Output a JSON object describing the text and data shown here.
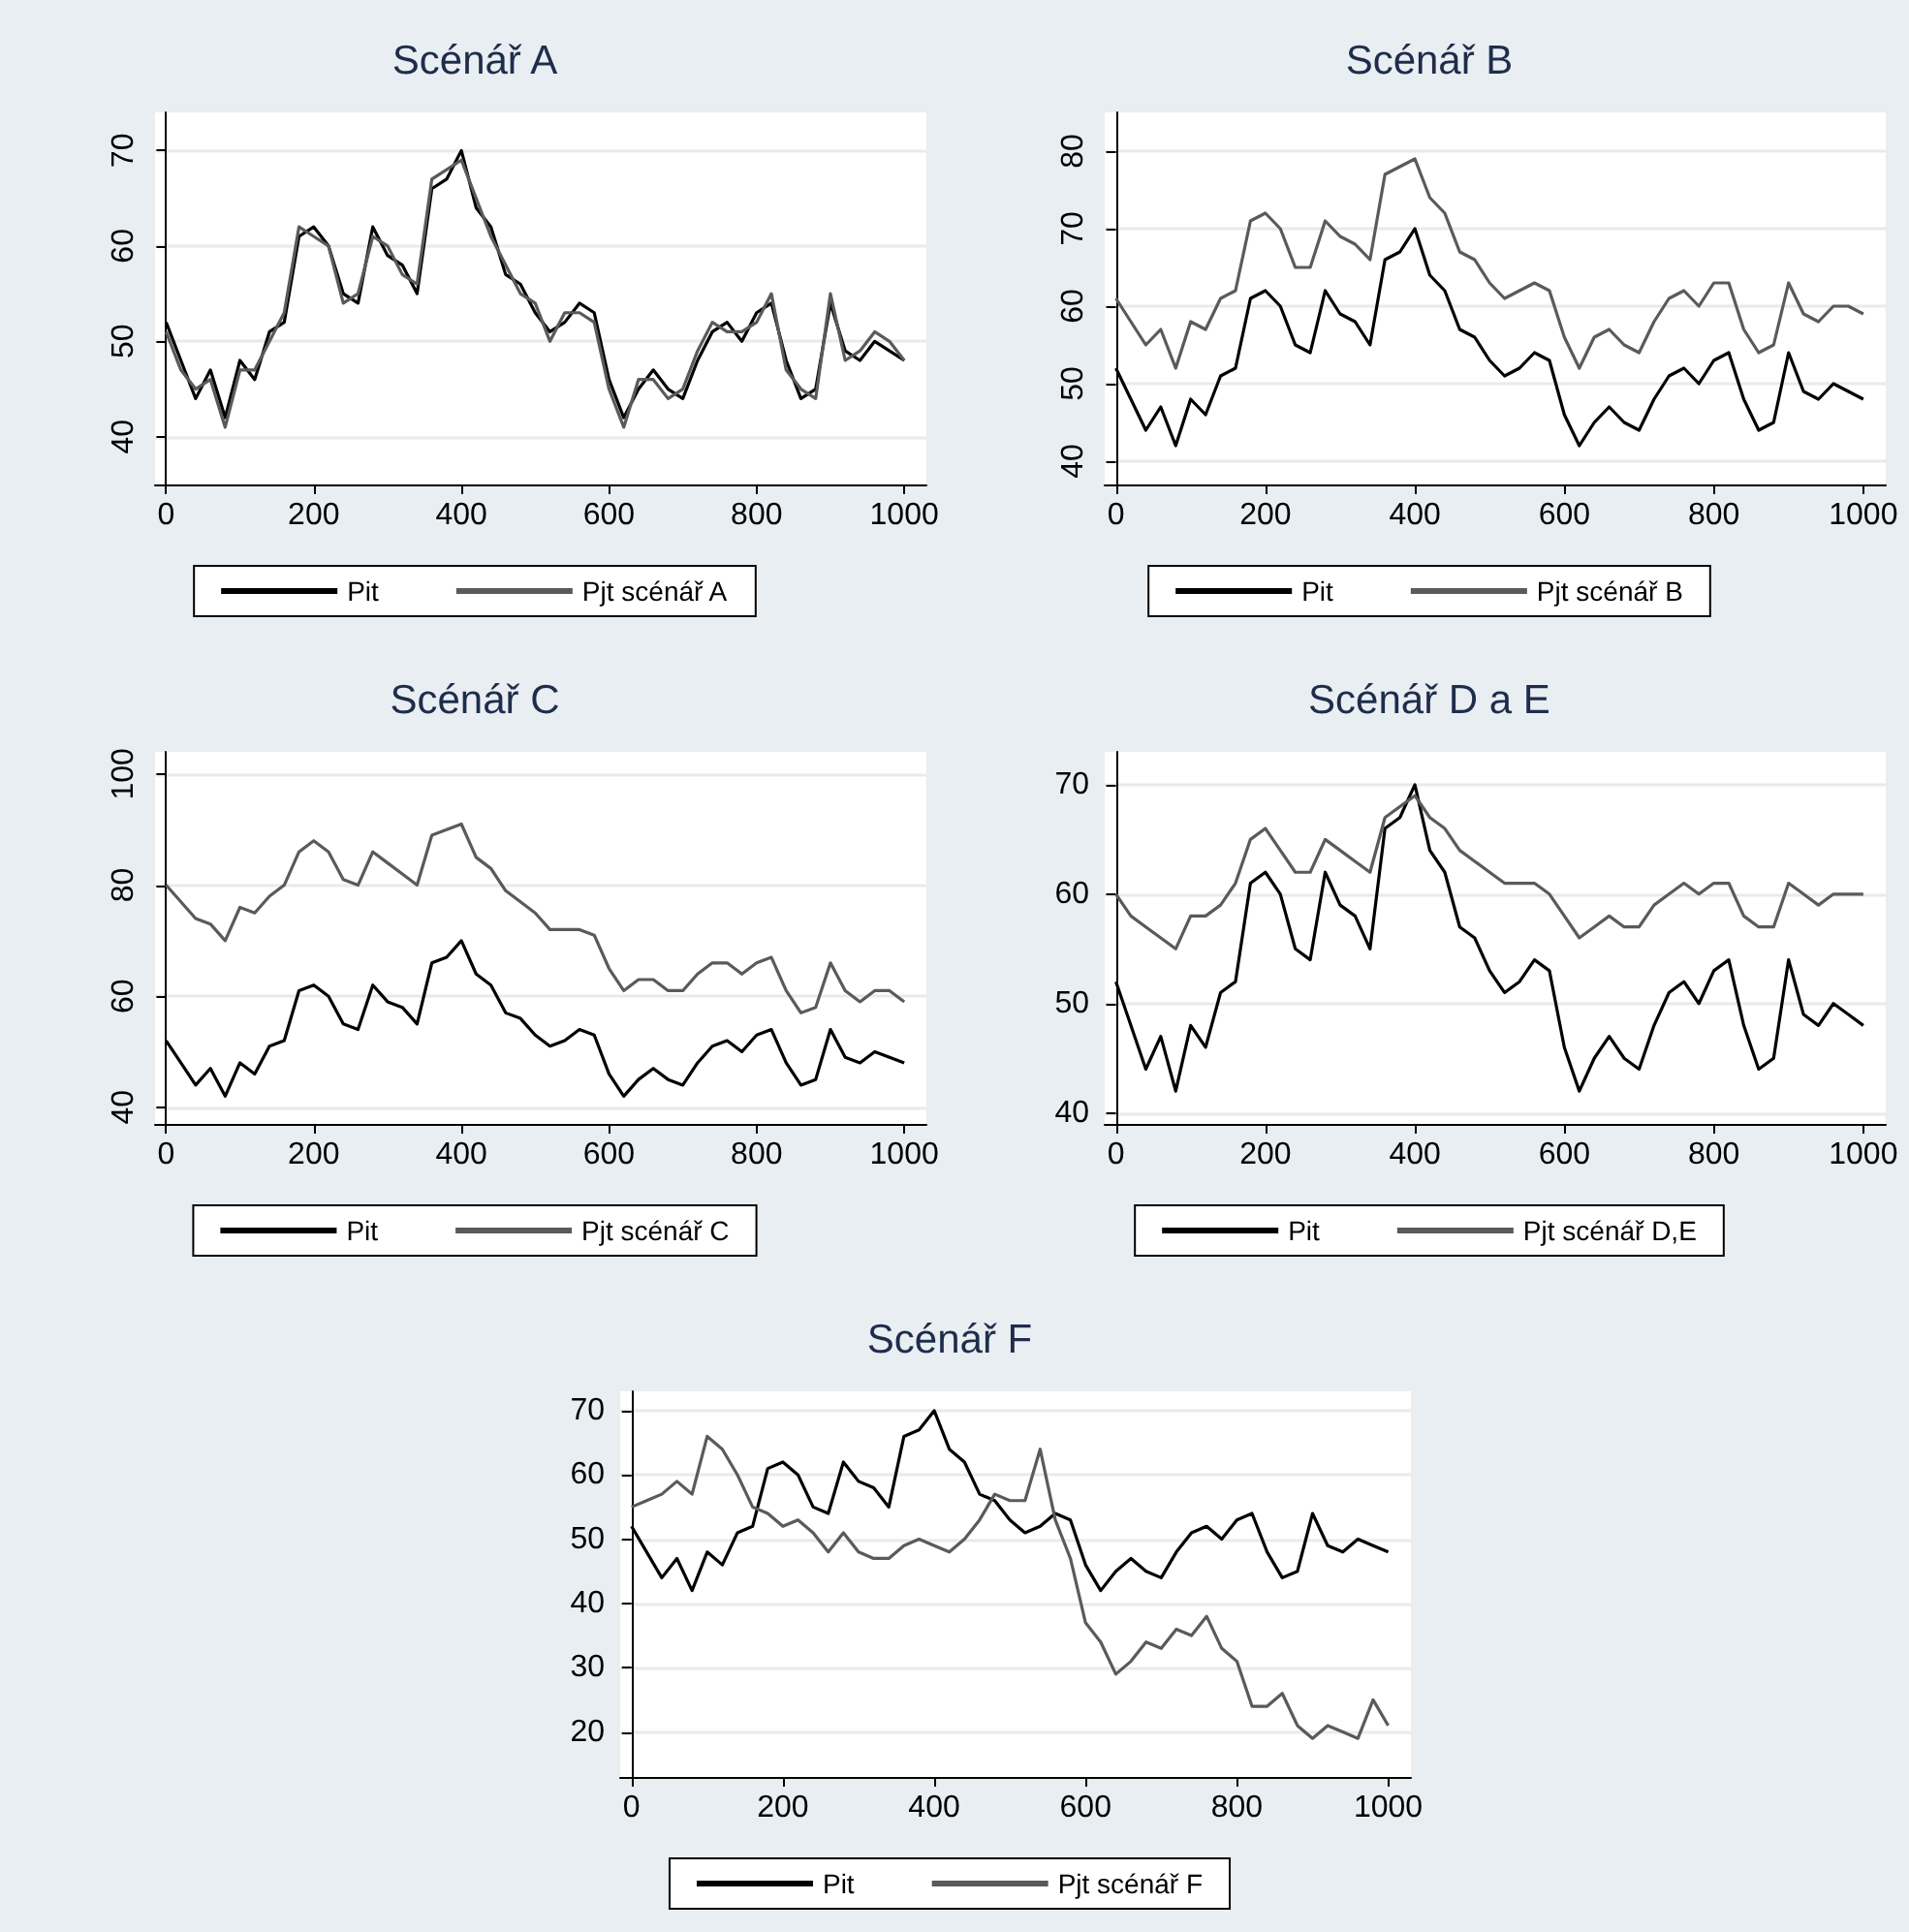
{
  "chart_data": [
    {
      "type": "line",
      "title": "Scénář A",
      "x": [
        0,
        20,
        40,
        60,
        80,
        100,
        120,
        140,
        160,
        180,
        200,
        220,
        240,
        260,
        280,
        300,
        320,
        340,
        360,
        380,
        400,
        420,
        440,
        460,
        480,
        500,
        520,
        540,
        560,
        580,
        600,
        620,
        640,
        660,
        680,
        700,
        720,
        740,
        760,
        780,
        800,
        820,
        840,
        860,
        880,
        900,
        920,
        940,
        960,
        980,
        1000
      ],
      "xlim": [
        -15,
        1030
      ],
      "xticks": [
        0,
        200,
        400,
        600,
        800,
        1000
      ],
      "ylim": [
        35,
        74
      ],
      "yticks": [
        40,
        50,
        60,
        70
      ],
      "grid": "y",
      "legend": "bottom",
      "marker": "none",
      "line_style": "solid",
      "series": [
        {
          "name": "Pit",
          "color": "#000000",
          "values": [
            52,
            48,
            44,
            47,
            42,
            48,
            46,
            51,
            52,
            61,
            62,
            60,
            55,
            54,
            62,
            59,
            58,
            55,
            66,
            67,
            70,
            64,
            62,
            57,
            56,
            53,
            51,
            52,
            54,
            53,
            46,
            42,
            45,
            47,
            45,
            44,
            48,
            51,
            52,
            50,
            53,
            54,
            48,
            44,
            45,
            54,
            49,
            48,
            50,
            49,
            48
          ]
        },
        {
          "name": "Pjt scénář A",
          "color": "#5a5a5a",
          "values": [
            51,
            47,
            45,
            46,
            41,
            47,
            47,
            50,
            53,
            62,
            61,
            60,
            54,
            55,
            61,
            60,
            57,
            56,
            67,
            68,
            69,
            65,
            61,
            58,
            55,
            54,
            50,
            53,
            53,
            52,
            45,
            41,
            46,
            46,
            44,
            45,
            49,
            52,
            51,
            51,
            52,
            55,
            47,
            45,
            44,
            55,
            48,
            49,
            51,
            50,
            48
          ]
        }
      ]
    },
    {
      "type": "line",
      "title": "Scénář B",
      "x": [
        0,
        20,
        40,
        60,
        80,
        100,
        120,
        140,
        160,
        180,
        200,
        220,
        240,
        260,
        280,
        300,
        320,
        340,
        360,
        380,
        400,
        420,
        440,
        460,
        480,
        500,
        520,
        540,
        560,
        580,
        600,
        620,
        640,
        660,
        680,
        700,
        720,
        740,
        760,
        780,
        800,
        820,
        840,
        860,
        880,
        900,
        920,
        940,
        960,
        980,
        1000
      ],
      "xlim": [
        -15,
        1030
      ],
      "xticks": [
        0,
        200,
        400,
        600,
        800,
        1000
      ],
      "ylim": [
        37,
        85
      ],
      "yticks": [
        40,
        50,
        60,
        70,
        80
      ],
      "grid": "y",
      "legend": "bottom",
      "marker": "none",
      "line_style": "solid",
      "series": [
        {
          "name": "Pit",
          "color": "#000000",
          "values": [
            52,
            48,
            44,
            47,
            42,
            48,
            46,
            51,
            52,
            61,
            62,
            60,
            55,
            54,
            62,
            59,
            58,
            55,
            66,
            67,
            70,
            64,
            62,
            57,
            56,
            53,
            51,
            52,
            54,
            53,
            46,
            42,
            45,
            47,
            45,
            44,
            48,
            51,
            52,
            50,
            53,
            54,
            48,
            44,
            45,
            54,
            49,
            48,
            50,
            49,
            48
          ]
        },
        {
          "name": "Pjt scénář B",
          "color": "#5a5a5a",
          "values": [
            61,
            58,
            55,
            57,
            52,
            58,
            57,
            61,
            62,
            71,
            72,
            70,
            65,
            65,
            71,
            69,
            68,
            66,
            77,
            78,
            79,
            74,
            72,
            67,
            66,
            63,
            61,
            62,
            63,
            62,
            56,
            52,
            56,
            57,
            55,
            54,
            58,
            61,
            62,
            60,
            63,
            63,
            57,
            54,
            55,
            63,
            59,
            58,
            60,
            60,
            59
          ]
        }
      ]
    },
    {
      "type": "line",
      "title": "Scénář C",
      "x": [
        0,
        20,
        40,
        60,
        80,
        100,
        120,
        140,
        160,
        180,
        200,
        220,
        240,
        260,
        280,
        300,
        320,
        340,
        360,
        380,
        400,
        420,
        440,
        460,
        480,
        500,
        520,
        540,
        560,
        580,
        600,
        620,
        640,
        660,
        680,
        700,
        720,
        740,
        760,
        780,
        800,
        820,
        840,
        860,
        880,
        900,
        920,
        940,
        960,
        980,
        1000
      ],
      "xlim": [
        -15,
        1030
      ],
      "xticks": [
        0,
        200,
        400,
        600,
        800,
        1000
      ],
      "ylim": [
        37,
        104
      ],
      "yticks": [
        40,
        60,
        80,
        100
      ],
      "grid": "y",
      "legend": "bottom",
      "marker": "none",
      "line_style": "solid",
      "series": [
        {
          "name": "Pit",
          "color": "#000000",
          "values": [
            52,
            48,
            44,
            47,
            42,
            48,
            46,
            51,
            52,
            61,
            62,
            60,
            55,
            54,
            62,
            59,
            58,
            55,
            66,
            67,
            70,
            64,
            62,
            57,
            56,
            53,
            51,
            52,
            54,
            53,
            46,
            42,
            45,
            47,
            45,
            44,
            48,
            51,
            52,
            50,
            53,
            54,
            48,
            44,
            45,
            54,
            49,
            48,
            50,
            49,
            48
          ]
        },
        {
          "name": "Pjt scénář C",
          "color": "#5a5a5a",
          "values": [
            80,
            77,
            74,
            73,
            70,
            76,
            75,
            78,
            80,
            86,
            88,
            86,
            81,
            80,
            86,
            84,
            82,
            80,
            89,
            90,
            91,
            85,
            83,
            79,
            77,
            75,
            72,
            72,
            72,
            71,
            65,
            61,
            63,
            63,
            61,
            61,
            64,
            66,
            66,
            64,
            66,
            67,
            61,
            57,
            58,
            66,
            61,
            59,
            61,
            61,
            59
          ]
        }
      ]
    },
    {
      "type": "line",
      "title": "Scénář D a E",
      "x": [
        0,
        20,
        40,
        60,
        80,
        100,
        120,
        140,
        160,
        180,
        200,
        220,
        240,
        260,
        280,
        300,
        320,
        340,
        360,
        380,
        400,
        420,
        440,
        460,
        480,
        500,
        520,
        540,
        560,
        580,
        600,
        620,
        640,
        660,
        680,
        700,
        720,
        740,
        760,
        780,
        800,
        820,
        840,
        860,
        880,
        900,
        920,
        940,
        960,
        980,
        1000
      ],
      "xlim": [
        -15,
        1030
      ],
      "xticks": [
        0,
        200,
        400,
        600,
        800,
        1000
      ],
      "ylim": [
        39,
        73
      ],
      "yticks": [
        40,
        50,
        60,
        70
      ],
      "grid": "y",
      "legend": "bottom",
      "marker": "none",
      "line_style": "solid",
      "series": [
        {
          "name": "Pit",
          "color": "#000000",
          "values": [
            52,
            48,
            44,
            47,
            42,
            48,
            46,
            51,
            52,
            61,
            62,
            60,
            55,
            54,
            62,
            59,
            58,
            55,
            66,
            67,
            70,
            64,
            62,
            57,
            56,
            53,
            51,
            52,
            54,
            53,
            46,
            42,
            45,
            47,
            45,
            44,
            48,
            51,
            52,
            50,
            53,
            54,
            48,
            44,
            45,
            54,
            49,
            48,
            50,
            49,
            48
          ]
        },
        {
          "name": "Pjt scénář D,E",
          "color": "#5a5a5a",
          "values": [
            60,
            58,
            57,
            56,
            55,
            58,
            58,
            59,
            61,
            65,
            66,
            64,
            62,
            62,
            65,
            64,
            63,
            62,
            67,
            68,
            69,
            67,
            66,
            64,
            63,
            62,
            61,
            61,
            61,
            60,
            58,
            56,
            57,
            58,
            57,
            57,
            59,
            60,
            61,
            60,
            61,
            61,
            58,
            57,
            57,
            61,
            60,
            59,
            60,
            60,
            60
          ]
        }
      ]
    },
    {
      "type": "line",
      "title": "Scénář F",
      "x": [
        0,
        20,
        40,
        60,
        80,
        100,
        120,
        140,
        160,
        180,
        200,
        220,
        240,
        260,
        280,
        300,
        320,
        340,
        360,
        380,
        400,
        420,
        440,
        460,
        480,
        500,
        520,
        540,
        560,
        580,
        600,
        620,
        640,
        660,
        680,
        700,
        720,
        740,
        760,
        780,
        800,
        820,
        840,
        860,
        880,
        900,
        920,
        940,
        960,
        980,
        1000
      ],
      "xlim": [
        -15,
        1030
      ],
      "xticks": [
        0,
        200,
        400,
        600,
        800,
        1000
      ],
      "ylim": [
        13,
        73
      ],
      "yticks": [
        20,
        30,
        40,
        50,
        60,
        70
      ],
      "grid": "y",
      "legend": "bottom",
      "marker": "none",
      "line_style": "solid",
      "series": [
        {
          "name": "Pit",
          "color": "#000000",
          "values": [
            52,
            48,
            44,
            47,
            42,
            48,
            46,
            51,
            52,
            61,
            62,
            60,
            55,
            54,
            62,
            59,
            58,
            55,
            66,
            67,
            70,
            64,
            62,
            57,
            56,
            53,
            51,
            52,
            54,
            53,
            46,
            42,
            45,
            47,
            45,
            44,
            48,
            51,
            52,
            50,
            53,
            54,
            48,
            44,
            45,
            54,
            49,
            48,
            50,
            49,
            48
          ]
        },
        {
          "name": "Pjt scénář F",
          "color": "#5a5a5a",
          "values": [
            55,
            56,
            57,
            59,
            57,
            66,
            64,
            60,
            55,
            54,
            52,
            53,
            51,
            48,
            51,
            48,
            47,
            47,
            49,
            50,
            49,
            48,
            50,
            53,
            57,
            56,
            56,
            64,
            53,
            47,
            37,
            34,
            29,
            31,
            34,
            33,
            36,
            35,
            38,
            33,
            31,
            24,
            24,
            26,
            21,
            19,
            21,
            20,
            19,
            25,
            21
          ]
        }
      ]
    }
  ]
}
